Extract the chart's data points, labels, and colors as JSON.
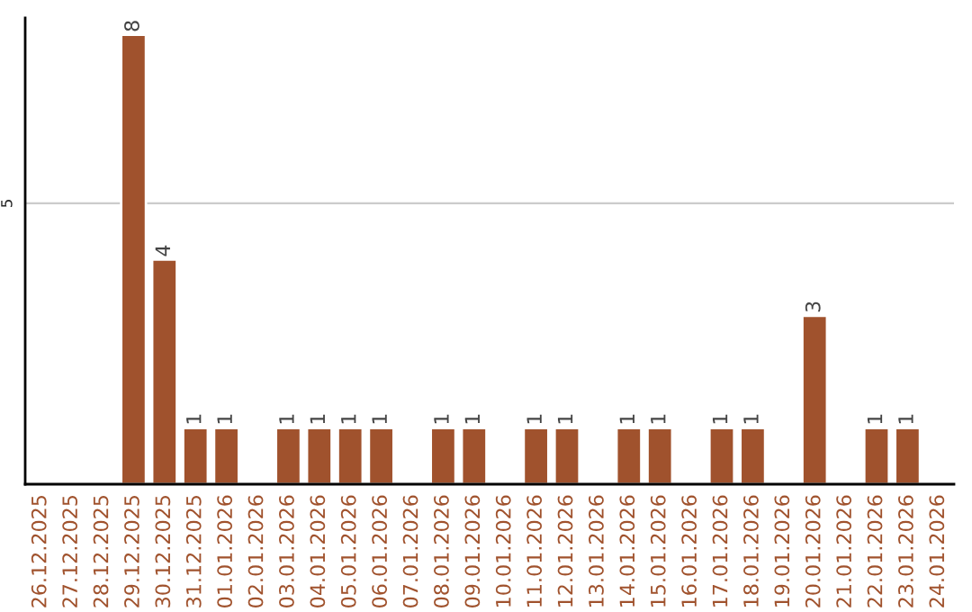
{
  "chart_data": {
    "type": "bar",
    "categories": [
      "26.12.2025",
      "27.12.2025",
      "28.12.2025",
      "29.12.2025",
      "30.12.2025",
      "31.12.2025",
      "01.01.2026",
      "02.01.2026",
      "03.01.2026",
      "04.01.2026",
      "05.01.2026",
      "06.01.2026",
      "07.01.2026",
      "08.01.2026",
      "09.01.2026",
      "10.01.2026",
      "11.01.2026",
      "12.01.2026",
      "13.01.2026",
      "14.01.2026",
      "15.01.2026",
      "16.01.2026",
      "17.01.2026",
      "18.01.2026",
      "19.01.2026",
      "20.01.2026",
      "21.01.2026",
      "22.01.2026",
      "23.01.2026",
      "24.01.2026"
    ],
    "values": [
      null,
      null,
      null,
      8,
      4,
      1,
      1,
      null,
      1,
      1,
      1,
      1,
      null,
      1,
      1,
      null,
      1,
      1,
      null,
      1,
      1,
      null,
      1,
      1,
      null,
      3,
      null,
      1,
      1,
      null
    ],
    "data_labels": true,
    "color": "#a0522d",
    "ylim": [
      0,
      8.3
    ],
    "yticks": [
      5
    ],
    "grid": "y"
  }
}
